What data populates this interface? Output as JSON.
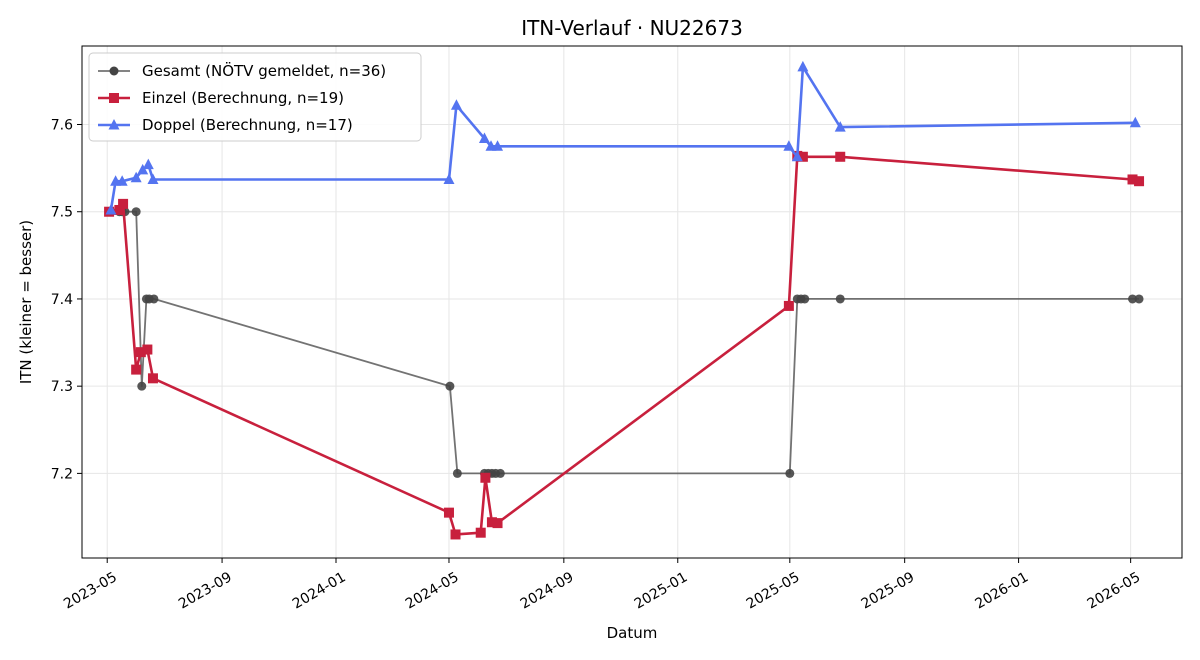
{
  "chart_data": {
    "type": "line",
    "title": "ITN-Verlauf · NU22673",
    "xlabel": "Datum",
    "ylabel": "ITN  (kleiner = besser)",
    "x_type": "date",
    "xlim": [
      "2023-04-04",
      "2026-06-25"
    ],
    "ylim": [
      7.103,
      7.69
    ],
    "x_ticks": [
      "2023-05",
      "2023-09",
      "2024-01",
      "2024-05",
      "2024-09",
      "2025-01",
      "2025-05",
      "2025-09",
      "2026-01",
      "2026-05"
    ],
    "y_ticks": [
      7.2,
      7.3,
      7.4,
      7.5,
      7.6
    ],
    "grid": true,
    "legend_position": "top-left",
    "series": [
      {
        "name": "Gesamt (NÖTV gemeldet, n=36)",
        "color": "#444444",
        "marker": "circle",
        "points": [
          [
            "2023-05-03",
            7.5
          ],
          [
            "2023-05-05",
            7.5
          ],
          [
            "2023-05-14",
            7.5
          ],
          [
            "2023-05-17",
            7.5
          ],
          [
            "2023-05-20",
            7.5
          ],
          [
            "2023-06-01",
            7.5
          ],
          [
            "2023-06-07",
            7.3
          ],
          [
            "2023-06-12",
            7.4
          ],
          [
            "2023-06-15",
            7.4
          ],
          [
            "2023-06-20",
            7.4
          ],
          [
            "2024-05-02",
            7.3
          ],
          [
            "2024-05-10",
            7.2
          ],
          [
            "2024-06-08",
            7.2
          ],
          [
            "2024-06-12",
            7.2
          ],
          [
            "2024-06-16",
            7.2
          ],
          [
            "2024-06-20",
            7.2
          ],
          [
            "2024-06-25",
            7.2
          ],
          [
            "2025-05-01",
            7.2
          ],
          [
            "2025-05-09",
            7.4
          ],
          [
            "2025-05-13",
            7.4
          ],
          [
            "2025-05-17",
            7.4
          ],
          [
            "2025-06-24",
            7.4
          ],
          [
            "2026-05-03",
            7.4
          ],
          [
            "2026-05-10",
            7.4
          ]
        ]
      },
      {
        "name": "Einzel (Berechnung, n=19)",
        "color": "#c8203d",
        "marker": "square",
        "points": [
          [
            "2023-05-03",
            7.5
          ],
          [
            "2023-05-14",
            7.502
          ],
          [
            "2023-05-18",
            7.509
          ],
          [
            "2023-06-01",
            7.319
          ],
          [
            "2023-06-06",
            7.339
          ],
          [
            "2023-06-13",
            7.342
          ],
          [
            "2023-06-19",
            7.309
          ],
          [
            "2024-05-01",
            7.155
          ],
          [
            "2024-05-08",
            7.13
          ],
          [
            "2024-06-04",
            7.132
          ],
          [
            "2024-06-09",
            7.195
          ],
          [
            "2024-06-16",
            7.144
          ],
          [
            "2024-06-22",
            7.143
          ],
          [
            "2025-04-30",
            7.392
          ],
          [
            "2025-05-09",
            7.564
          ],
          [
            "2025-05-15",
            7.563
          ],
          [
            "2025-06-24",
            7.563
          ],
          [
            "2026-05-03",
            7.537
          ],
          [
            "2026-05-10",
            7.535
          ]
        ]
      },
      {
        "name": "Doppel (Berechnung, n=17)",
        "color": "#5474f0",
        "marker": "triangle",
        "points": [
          [
            "2023-05-05",
            7.502
          ],
          [
            "2023-05-10",
            7.535
          ],
          [
            "2023-05-17",
            7.535
          ],
          [
            "2023-06-01",
            7.539
          ],
          [
            "2023-06-08",
            7.548
          ],
          [
            "2023-06-14",
            7.554
          ],
          [
            "2023-06-19",
            7.537
          ],
          [
            "2024-05-01",
            7.537
          ],
          [
            "2024-05-09",
            7.622
          ],
          [
            "2024-06-08",
            7.584
          ],
          [
            "2024-06-15",
            7.575
          ],
          [
            "2024-06-22",
            7.575
          ],
          [
            "2025-04-30",
            7.575
          ],
          [
            "2025-05-09",
            7.563
          ],
          [
            "2025-05-15",
            7.666
          ],
          [
            "2025-06-24",
            7.597
          ],
          [
            "2026-05-06",
            7.602
          ]
        ]
      }
    ]
  }
}
